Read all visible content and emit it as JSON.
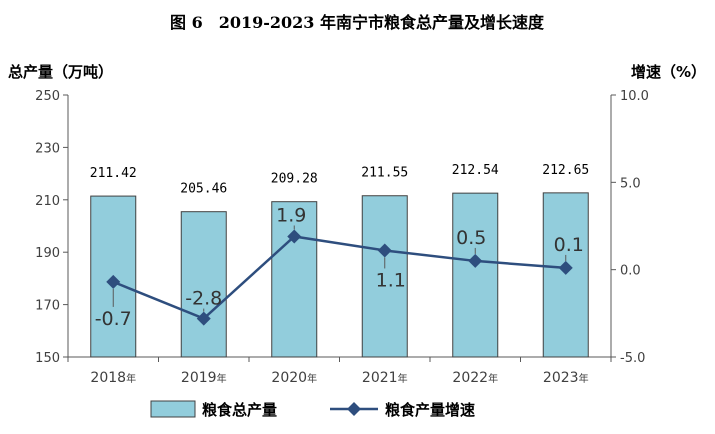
{
  "chart_data": {
    "type": "bar+line",
    "title": "图 6　2019-2023 年南宁市粮食总产量及增长速度",
    "ylabel_left": "总产量（万吨）",
    "ylabel_right": "增速（%）",
    "categories": [
      "2018",
      "2019",
      "2020",
      "2021",
      "2022",
      "2023"
    ],
    "category_suffix": "年",
    "y_left": {
      "min": 150,
      "max": 250,
      "ticks": [
        "150",
        "170",
        "190",
        "210",
        "230",
        "250"
      ]
    },
    "y_right": {
      "min": -5,
      "max": 10,
      "ticks": [
        "-5.0",
        "0.0",
        "5.0",
        "10.0"
      ]
    },
    "series": [
      {
        "name": "粮食总产量",
        "type": "bar",
        "axis": "left",
        "color": "#92CDDC",
        "values": [
          211.42,
          205.46,
          209.28,
          211.55,
          212.54,
          212.65
        ],
        "labels": [
          "211.42",
          "205.46",
          "209.28",
          "211.55",
          "212.54",
          "212.65"
        ]
      },
      {
        "name": "粮食产量增速",
        "type": "line",
        "axis": "right",
        "color": "#2E4E7E",
        "values": [
          -0.7,
          -2.8,
          1.9,
          1.1,
          0.5,
          0.1
        ],
        "labels": [
          "-0.7",
          "-2.8",
          "1.9",
          "1.1",
          "0.5",
          "0.1"
        ]
      }
    ],
    "grid": false,
    "legend_position": "bottom"
  }
}
